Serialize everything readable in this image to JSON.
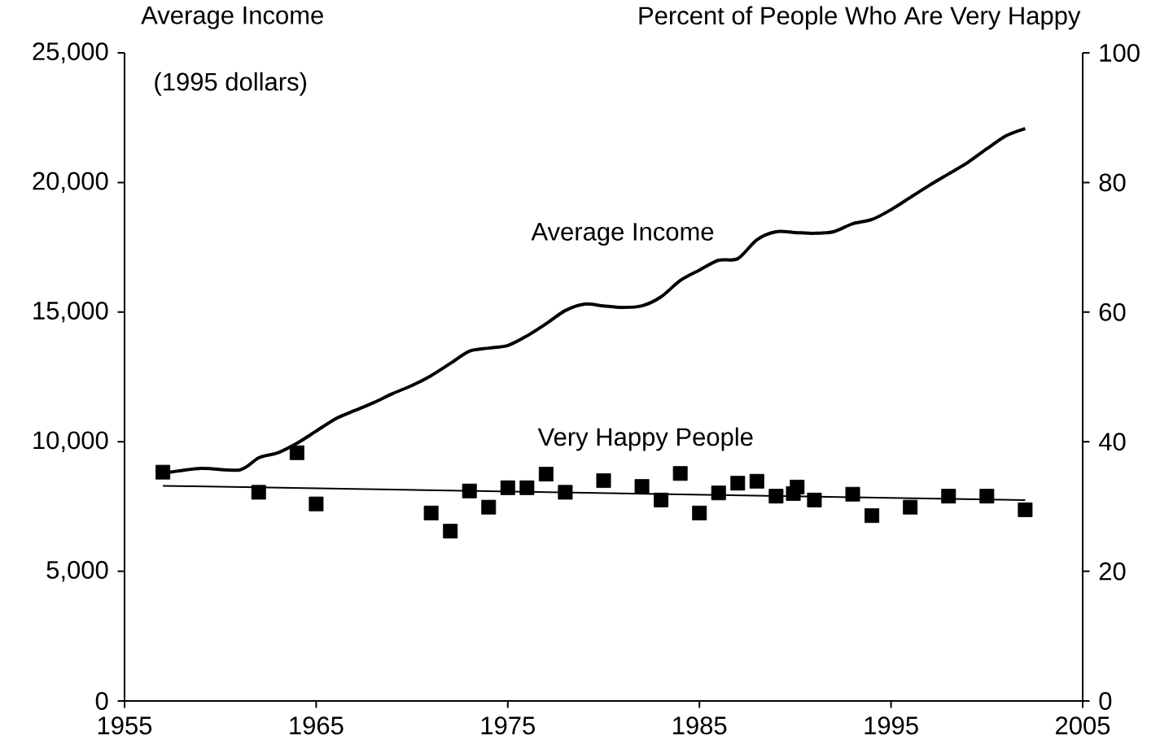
{
  "chart_data": {
    "type": "line",
    "ylabel": "Average Income",
    "y2label": "Percent of People Who Are Very Happy",
    "annotations": [
      "(1995 dollars)"
    ],
    "xlim": [
      1955,
      2005
    ],
    "xticks": [
      1955,
      1965,
      1975,
      1985,
      1995,
      2005
    ],
    "ylim": [
      0,
      25000
    ],
    "yticks": [
      0,
      {
        "value": 5000,
        "label": "5,000"
      },
      {
        "value": 10000,
        "label": "10,000"
      },
      {
        "value": 15000,
        "label": "15,000"
      },
      {
        "value": 20000,
        "label": "20,000"
      },
      {
        "value": 25000,
        "label": "25,000"
      }
    ],
    "y2lim": [
      0,
      100
    ],
    "y2ticks": [
      0,
      20,
      40,
      60,
      80,
      100
    ],
    "series": [
      {
        "name": "Average Income",
        "color": "#000000",
        "x": [
          1957,
          1959,
          1961,
          1962,
          1963,
          1964,
          1965,
          1966,
          1967,
          1968,
          1969,
          1970,
          1971,
          1972,
          1973,
          1974,
          1975,
          1976,
          1977,
          1978,
          1979,
          1980,
          1981,
          1982,
          1983,
          1984,
          1985,
          1986,
          1987,
          1988,
          1989,
          1990,
          1991,
          1992,
          1993,
          1994,
          1995,
          1996,
          1997,
          1998,
          1999,
          2000,
          2001,
          2002
        ],
        "values": [
          8780,
          8970,
          8910,
          9380,
          9570,
          9940,
          10410,
          10880,
          11200,
          11510,
          11860,
          12170,
          12550,
          13020,
          13490,
          13610,
          13710,
          14080,
          14550,
          15060,
          15310,
          15240,
          15180,
          15240,
          15590,
          16220,
          16620,
          17000,
          17060,
          17790,
          18100,
          18070,
          18040,
          18100,
          18410,
          18570,
          18950,
          19420,
          19890,
          20330,
          20770,
          21300,
          21800,
          22080
        ]
      },
      {
        "name": "Very Happy People",
        "type": "scatter",
        "marker": "square",
        "axis": "y2",
        "color": "#000000",
        "x": [
          1957,
          1962,
          1964,
          1965,
          1971,
          1972,
          1973,
          1974,
          1975,
          1976,
          1977,
          1978,
          1980,
          1982,
          1983,
          1984,
          1985,
          1986,
          1987,
          1988,
          1989,
          1989.9,
          1990.1,
          1991,
          1993,
          1994,
          1996,
          1998,
          2000,
          2002
        ],
        "values": [
          35.3,
          32.2,
          38.3,
          30.4,
          29.0,
          26.2,
          32.4,
          29.9,
          32.9,
          32.9,
          35.0,
          32.2,
          34.0,
          33.1,
          31.0,
          35.1,
          29.0,
          32.1,
          33.6,
          33.9,
          31.6,
          32.0,
          33.0,
          31.0,
          31.9,
          28.6,
          29.9,
          31.6,
          31.6,
          29.5
        ]
      },
      {
        "axis": "y2",
        "color": "#000000",
        "x": [
          1957,
          2002
        ],
        "values": [
          33.2,
          31.0
        ]
      }
    ]
  }
}
